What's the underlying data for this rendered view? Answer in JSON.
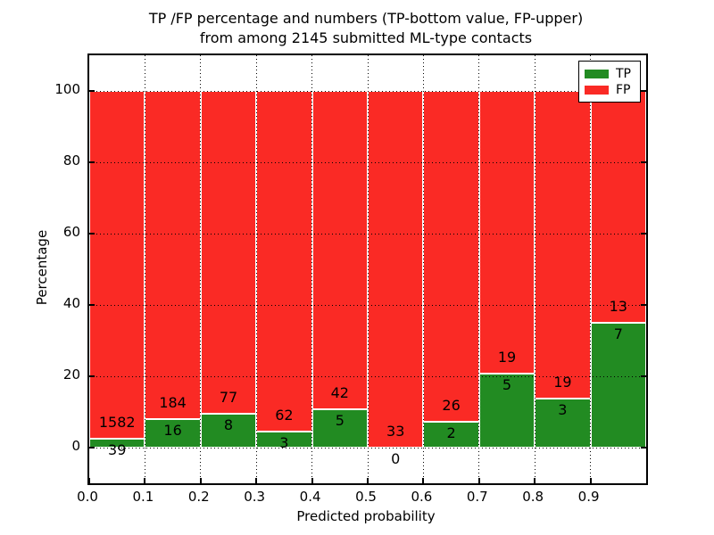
{
  "chart_data": {
    "type": "bar",
    "stacked": true,
    "title_line1": "TP /FP percentage and numbers (TP-bottom value, FP-upper)",
    "title_line2": "from among 2145 submitted ML-type contacts",
    "xlabel": "Predicted probability",
    "ylabel": "Percentage",
    "total_submitted": 2145,
    "x_tick_labels": [
      "0.0",
      "0.1",
      "0.2",
      "0.3",
      "0.4",
      "0.5",
      "0.6",
      "0.7",
      "0.8",
      "0.9"
    ],
    "y_tick_values": [
      0,
      20,
      40,
      60,
      80,
      100
    ],
    "ylim": [
      -10,
      110
    ],
    "xlim": [
      0.0,
      1.0
    ],
    "grid": "dotted",
    "legend_position": "upper-right",
    "legend": [
      {
        "label": "TP",
        "color": "#228b22"
      },
      {
        "label": "FP",
        "color": "#fa2a25"
      }
    ],
    "colors": {
      "tp": "#228b22",
      "fp": "#fa2a25",
      "grid": "#000000",
      "background": "#ffffff"
    },
    "bars": [
      {
        "bin_start": 0.0,
        "bin_end": 0.1,
        "tp": 39,
        "fp": 1582
      },
      {
        "bin_start": 0.1,
        "bin_end": 0.2,
        "tp": 16,
        "fp": 184
      },
      {
        "bin_start": 0.2,
        "bin_end": 0.3,
        "tp": 8,
        "fp": 77
      },
      {
        "bin_start": 0.3,
        "bin_end": 0.4,
        "tp": 3,
        "fp": 62
      },
      {
        "bin_start": 0.4,
        "bin_end": 0.5,
        "tp": 5,
        "fp": 42
      },
      {
        "bin_start": 0.5,
        "bin_end": 0.6,
        "tp": 0,
        "fp": 33
      },
      {
        "bin_start": 0.6,
        "bin_end": 0.7,
        "tp": 2,
        "fp": 26
      },
      {
        "bin_start": 0.7,
        "bin_end": 0.8,
        "tp": 5,
        "fp": 19
      },
      {
        "bin_start": 0.8,
        "bin_end": 0.9,
        "tp": 3,
        "fp": 19
      },
      {
        "bin_start": 0.9,
        "bin_end": 1.0,
        "tp": 7,
        "fp": 13
      }
    ]
  }
}
